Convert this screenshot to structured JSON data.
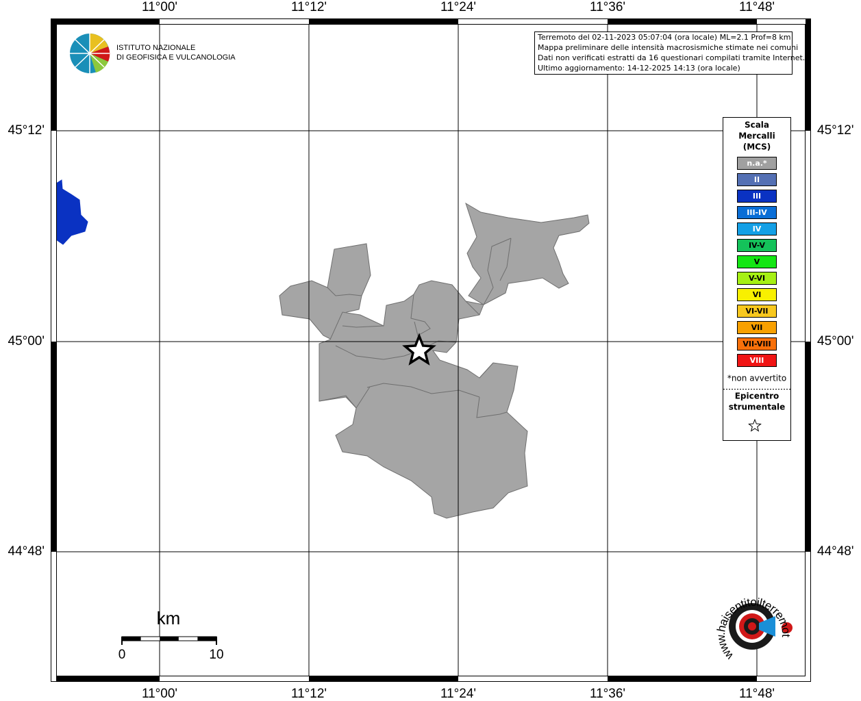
{
  "map": {
    "lon_labels": [
      "11°00'",
      "11°12'",
      "11°24'",
      "11°36'",
      "11°48'"
    ],
    "lat_labels": [
      "45°12'",
      "45°00'",
      "44°48'"
    ],
    "info": [
      "Terremoto del 02-11-2023 05:07:04 (ora locale) ML=2.1 Prof=8 km",
      "Mappa preliminare delle intensità macrosismiche stimate nei comuni",
      "Dati non verificati estratti da 16 questionari compilati tramite Internet.",
      "Ultimo aggiornamento: 14-12-2025 14:13 (ora locale)"
    ],
    "logo": [
      "ISTITUTO NAZIONALE",
      "DI GEOFISICA E VULCANOLOGIA"
    ],
    "legend": {
      "title": [
        "Scala",
        "Mercalli",
        "(MCS)"
      ],
      "items": [
        {
          "label": "n.a.*",
          "color": "#a0a0a0",
          "text": "#ffffff"
        },
        {
          "label": "II",
          "color": "#5470b4",
          "text": "#ffffff"
        },
        {
          "label": "III",
          "color": "#0a32c2",
          "text": "#ffffff"
        },
        {
          "label": "III-IV",
          "color": "#0a6ed6",
          "text": "#ffffff"
        },
        {
          "label": "IV",
          "color": "#14a0e6",
          "text": "#ffffff"
        },
        {
          "label": "IV-V",
          "color": "#14c25a",
          "text": "#000000"
        },
        {
          "label": "V",
          "color": "#14e614",
          "text": "#000000"
        },
        {
          "label": "V-VI",
          "color": "#a6f014",
          "text": "#000000"
        },
        {
          "label": "VI",
          "color": "#f8f000",
          "text": "#000000"
        },
        {
          "label": "VI-VII",
          "color": "#f8c81e",
          "text": "#000000"
        },
        {
          "label": "VII",
          "color": "#f8a000",
          "text": "#000000"
        },
        {
          "label": "VII-VIII",
          "color": "#f8700a",
          "text": "#000000"
        },
        {
          "label": "VIII",
          "color": "#f01414",
          "text": "#ffffff"
        }
      ],
      "note": "*non avvertito",
      "epicenter": [
        "Epicentro",
        "strumentale"
      ]
    },
    "scale": {
      "unit": "km",
      "start": "0",
      "end": "10"
    },
    "site": "www.haisentitoilterremoto.it"
  }
}
